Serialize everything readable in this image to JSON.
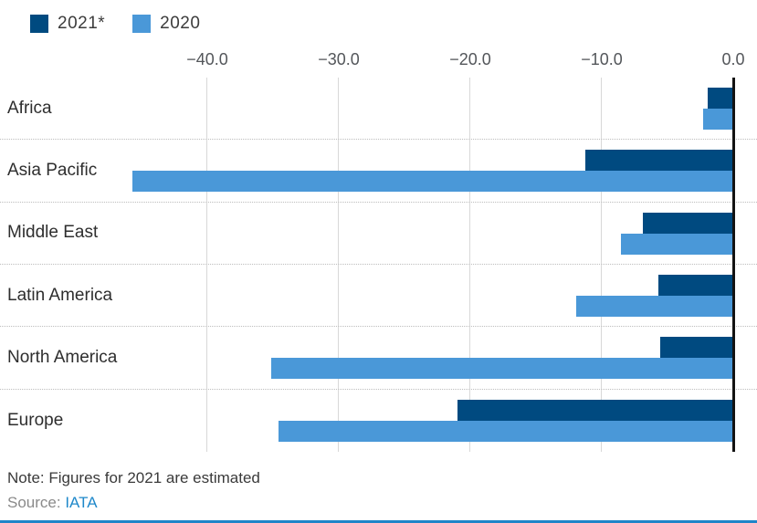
{
  "legend": {
    "items": [
      {
        "label": "2021*",
        "color": "#004a80"
      },
      {
        "label": "2020",
        "color": "#4a98d8"
      }
    ]
  },
  "note": "Note: Figures for 2021 are estimated",
  "source": {
    "label": "Source:",
    "link_text": "IATA"
  },
  "colors": {
    "series_2021": "#004a80",
    "series_2020": "#4a98d8",
    "zero_line": "#131313",
    "gridline": "#d8d8d8",
    "accent_bottom_bar": "#1f85c9",
    "link": "#1f88ca"
  },
  "chart_data": {
    "type": "bar",
    "orientation": "horizontal",
    "title": "",
    "xlabel": "",
    "ylabel": "",
    "categories": [
      "Africa",
      "Asia Pacific",
      "Middle East",
      "Latin America",
      "North America",
      "Europe"
    ],
    "series": [
      {
        "name": "2021*",
        "color": "#004a80",
        "values": [
          -1.9,
          -11.2,
          -6.8,
          -5.6,
          -5.5,
          -20.9
        ]
      },
      {
        "name": "2020",
        "color": "#4a98d8",
        "values": [
          -2.2,
          -45.6,
          -8.5,
          -11.9,
          -35.1,
          -34.5
        ]
      }
    ],
    "x_ticks": [
      -40,
      -30,
      -20,
      -10,
      0
    ],
    "x_tick_labels": [
      "−40.0",
      "−30.0",
      "−20.0",
      "−10.0",
      "0.0"
    ],
    "xlim": [
      -55.7,
      1.8
    ],
    "grid": "vertical",
    "legend_position": "top-left",
    "note": "Note: Figures for 2021 are estimated",
    "source": "Source: IATA"
  }
}
